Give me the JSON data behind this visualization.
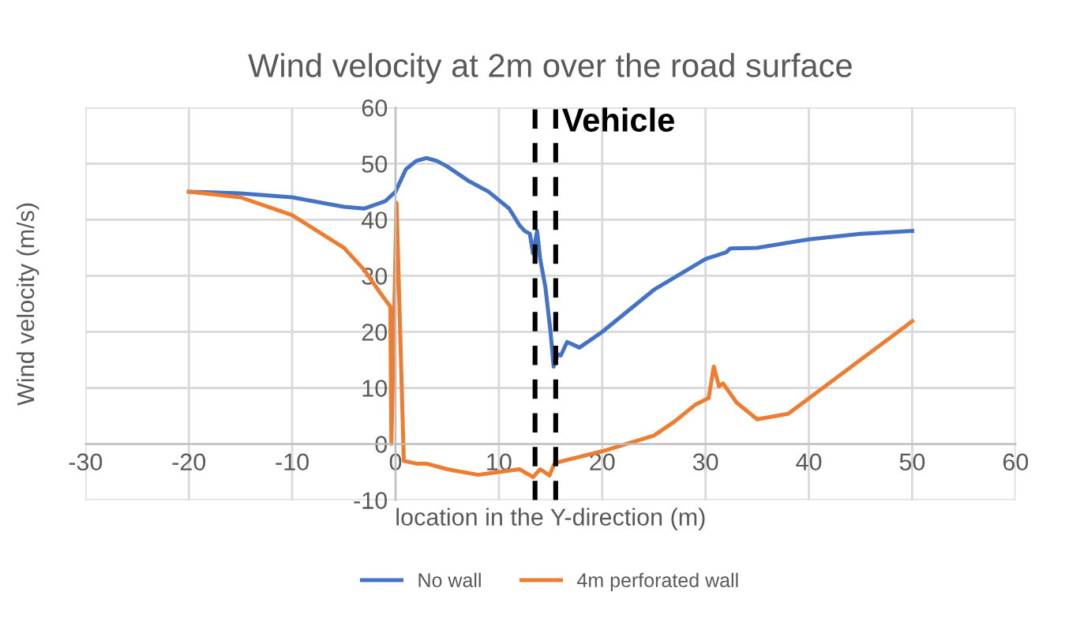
{
  "chart_data": {
    "type": "line",
    "title": "Wind velocity at 2m over the road surface",
    "xlabel": "location in the Y-direction (m)",
    "ylabel": "Wind velocity (m/s)",
    "xlim": [
      -30,
      60
    ],
    "xticks": [
      -30,
      -20,
      -10,
      0,
      10,
      20,
      30,
      40,
      50,
      60
    ],
    "ylim": [
      -10,
      60
    ],
    "yticks": [
      -10,
      0,
      10,
      20,
      30,
      40,
      50,
      60
    ],
    "grid": true,
    "legend": "bottom",
    "ref_lines": [
      {
        "axis": "x",
        "value": 13.5,
        "color": "#000000",
        "line_style": "dashed"
      },
      {
        "axis": "x",
        "value": 15.5,
        "label": "Vehicle",
        "color": "#000000",
        "line_style": "dashed"
      }
    ],
    "series": [
      {
        "name": "No wall",
        "color": "#4472c4",
        "x": [
          -20,
          -15,
          -10,
          -5,
          -3,
          -1,
          0,
          1,
          2,
          3,
          4,
          5,
          7,
          9,
          11,
          12,
          12.5,
          13,
          13.3,
          13.7,
          14,
          14.5,
          15,
          15.3,
          15.7,
          16,
          16.6,
          17.8,
          20,
          25,
          30,
          32,
          32.4,
          35,
          40,
          45,
          50
        ],
        "values": [
          45,
          44.7,
          44,
          42.3,
          42,
          43.3,
          45,
          49,
          50.5,
          51,
          50.5,
          49.5,
          47,
          45,
          42,
          39,
          38,
          37.5,
          34,
          38,
          33,
          28,
          20,
          13.8,
          16,
          15.8,
          18.2,
          17.2,
          20,
          27.5,
          33,
          34.2,
          34.9,
          35,
          36.5,
          37.5,
          38
        ]
      },
      {
        "name": "4m perforated wall",
        "color": "#ed7d31",
        "x": [
          -20,
          -15,
          -10,
          -5,
          -3,
          -1.5,
          -0.5,
          -0.4,
          0.1,
          0.8,
          2,
          3,
          5,
          8,
          10,
          12,
          13.3,
          14,
          14.9,
          15.4,
          20,
          25,
          27,
          29,
          30.3,
          30.8,
          31.3,
          31.7,
          33,
          35,
          38,
          50
        ],
        "values": [
          45,
          44,
          40.8,
          35,
          31,
          27,
          24.5,
          0,
          43,
          -3,
          -3.5,
          -3.5,
          -4.5,
          -5.5,
          -5,
          -4.5,
          -5.9,
          -4.5,
          -5.6,
          -3.4,
          -1.3,
          1.5,
          4,
          7,
          8.2,
          13.8,
          10.3,
          10.8,
          7.4,
          4.4,
          5.4,
          21.9
        ]
      }
    ]
  }
}
